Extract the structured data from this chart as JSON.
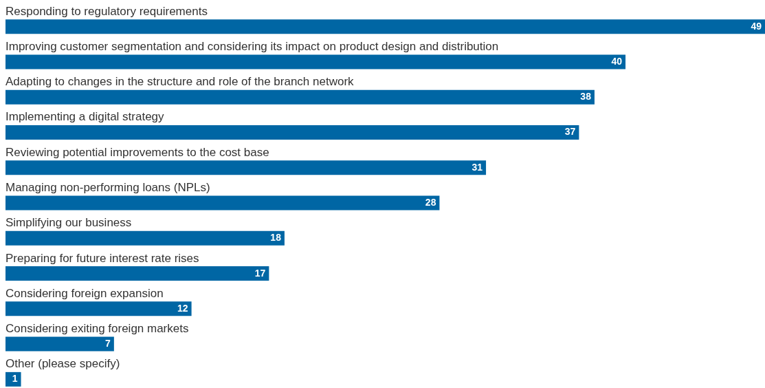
{
  "chart_data": {
    "type": "bar",
    "orientation": "horizontal",
    "categories": [
      "Responding to regulatory requirements",
      "Improving customer segmentation and considering its impact on product design and distribution",
      "Adapting to changes in the structure and role of the branch network",
      "Implementing a digital strategy",
      "Reviewing potential improvements to the cost base",
      "Managing non-performing loans (NPLs)",
      "Simplifying our business",
      "Preparing for future interest rate rises",
      "Considering foreign expansion",
      "Considering exiting foreign markets",
      "Other (please specify)"
    ],
    "values": [
      49,
      40,
      38,
      37,
      31,
      28,
      18,
      17,
      12,
      7,
      1
    ],
    "color": "#0066a4",
    "data_labels": true,
    "tick_labels": "y"
  }
}
